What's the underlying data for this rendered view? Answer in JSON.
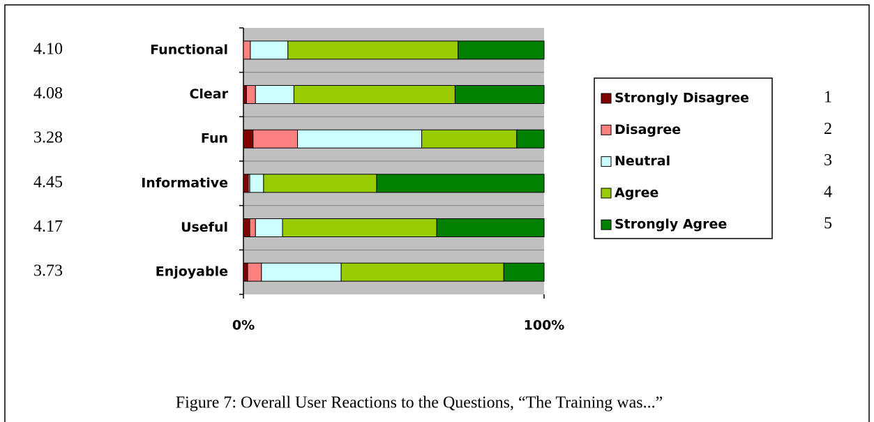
{
  "chart_data": {
    "type": "stacked_bar_horizontal",
    "caption": "Figure 7: Overall User Reactions to the Questions, “The Training was...”",
    "categories": [
      "Functional",
      "Clear",
      "Fun",
      "Informative",
      "Useful",
      "Enjoyable"
    ],
    "row_scores": [
      "4.10",
      "4.08",
      "3.28",
      "4.45",
      "4.17",
      "3.73"
    ],
    "scale_values": [
      1,
      2,
      3,
      4,
      5
    ],
    "series": [
      {
        "name": "Strongly Disagree",
        "color": "#800000",
        "values": [
          0,
          1,
          3.2,
          1.6,
          2.1,
          1.4
        ]
      },
      {
        "name": "Disagree",
        "color": "#ff8080",
        "values": [
          2.3,
          3,
          14.8,
          0.5,
          1.9,
          4.6
        ]
      },
      {
        "name": "Neutral",
        "color": "#ccffff",
        "values": [
          12.5,
          12.8,
          41.3,
          4.6,
          9,
          26.5
        ]
      },
      {
        "name": "Agree",
        "color": "#99cc00",
        "values": [
          56.6,
          53.6,
          31.6,
          37.6,
          51.3,
          54.1
        ]
      },
      {
        "name": "Strongly Agree",
        "color": "#008000",
        "values": [
          28.6,
          29.6,
          9.1,
          55.7,
          35.7,
          13.4
        ]
      }
    ],
    "xlim": [
      0,
      100
    ],
    "xticks": [
      {
        "value": 0,
        "label": "0%"
      },
      {
        "value": 100,
        "label": "100%"
      }
    ]
  }
}
